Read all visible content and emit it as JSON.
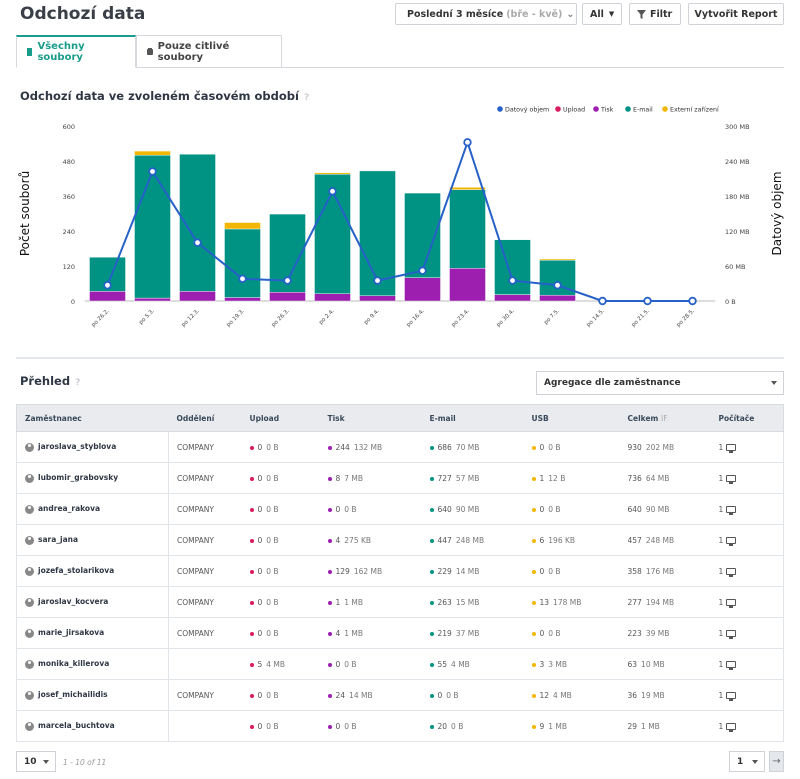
{
  "header": {
    "title": "Odchozí data",
    "period_label": "Poslední 3 měsíce",
    "period_range": "(bře - kvě)",
    "scope": "All",
    "filter_label": "Filtr",
    "report_label": "Vytvořit Report"
  },
  "tabs": [
    {
      "label": "Všechny soubory"
    },
    {
      "label": "Pouze citlivé soubory"
    }
  ],
  "chart_section": {
    "title": "Odchozí data ve zvoleném časovém období",
    "help": "?"
  },
  "chart_data": {
    "type": "bar",
    "ylabel": "Počet souborů",
    "y2label": "Datový objem",
    "ylim": [
      0,
      600
    ],
    "y2lim": [
      0,
      300
    ],
    "yticks": [
      "0",
      "120",
      "240",
      "360",
      "480",
      "600"
    ],
    "y2ticks": [
      "0 B",
      "60 MB",
      "120 MB",
      "180 MB",
      "240 MB",
      "300 MB"
    ],
    "categories": [
      "po 26.2.",
      "po 5.3.",
      "po 12.3.",
      "po 19.3.",
      "po 26.3.",
      "po 2.4.",
      "po 9.4.",
      "po 16.4.",
      "po 23.4.",
      "po 30.4.",
      "po 7.5.",
      "po 14.5.",
      "po 21.5.",
      "po 28.5."
    ],
    "series": [
      {
        "name": "Upload",
        "color": "#d81b60",
        "values": [
          0,
          0,
          0,
          0,
          0,
          0,
          0,
          0,
          0,
          0,
          0,
          0,
          0,
          0
        ]
      },
      {
        "name": "Tisk",
        "color": "#9c1fb0",
        "values": [
          33,
          10,
          33,
          12,
          30,
          25,
          18,
          80,
          112,
          22,
          20,
          0,
          0,
          0
        ]
      },
      {
        "name": "E-mail",
        "color": "#009384",
        "values": [
          117,
          490,
          470,
          235,
          268,
          410,
          428,
          290,
          270,
          188,
          120,
          0,
          0,
          0
        ]
      },
      {
        "name": "Externí zařízení",
        "color": "#f2b705",
        "values": [
          0,
          14,
          0,
          22,
          0,
          5,
          0,
          0,
          8,
          0,
          4,
          0,
          0,
          0
        ]
      },
      {
        "name": "Datový objem",
        "color": "#2561c8",
        "type": "line",
        "axis": "y2",
        "values": [
          27,
          222,
          100,
          38,
          35,
          188,
          35,
          52,
          272,
          35,
          27,
          0,
          0,
          0
        ]
      }
    ],
    "legend_position": "top-right"
  },
  "overview": {
    "title": "Přehled",
    "help": "?",
    "aggregation": "Agregace dle zaměstnance",
    "columns": [
      "Zaměstnanec",
      "Oddělení",
      "Upload",
      "Tisk",
      "E-mail",
      "USB",
      "Celkem",
      "Počítače"
    ],
    "celkem_suffix": "IF",
    "rows": [
      {
        "name": "jaroslava_styblova",
        "dept": "COMPANY",
        "up": "0",
        "up_s": "0 B",
        "tisk": "244",
        "tisk_s": "132 MB",
        "mail": "686",
        "mail_s": "70 MB",
        "usb": "0",
        "usb_s": "0 B",
        "tot": "930",
        "tot_s": "202 MB",
        "pc": "1"
      },
      {
        "name": "lubomir_grabovsky",
        "dept": "COMPANY",
        "up": "0",
        "up_s": "0 B",
        "tisk": "8",
        "tisk_s": "7 MB",
        "mail": "727",
        "mail_s": "57 MB",
        "usb": "1",
        "usb_s": "12 B",
        "tot": "736",
        "tot_s": "64 MB",
        "pc": "1"
      },
      {
        "name": "andrea_rakova",
        "dept": "COMPANY",
        "up": "0",
        "up_s": "0 B",
        "tisk": "0",
        "tisk_s": "0 B",
        "mail": "640",
        "mail_s": "90 MB",
        "usb": "0",
        "usb_s": "0 B",
        "tot": "640",
        "tot_s": "90 MB",
        "pc": "1"
      },
      {
        "name": "sara_jana",
        "dept": "COMPANY",
        "up": "0",
        "up_s": "0 B",
        "tisk": "4",
        "tisk_s": "275 KB",
        "mail": "447",
        "mail_s": "248 MB",
        "usb": "6",
        "usb_s": "196 KB",
        "tot": "457",
        "tot_s": "248 MB",
        "pc": "1"
      },
      {
        "name": "jozefa_stolarikova",
        "dept": "COMPANY",
        "up": "0",
        "up_s": "0 B",
        "tisk": "129",
        "tisk_s": "162 MB",
        "mail": "229",
        "mail_s": "14 MB",
        "usb": "0",
        "usb_s": "0 B",
        "tot": "358",
        "tot_s": "176 MB",
        "pc": "1"
      },
      {
        "name": "jaroslav_kocvera",
        "dept": "COMPANY",
        "up": "0",
        "up_s": "0 B",
        "tisk": "1",
        "tisk_s": "1 MB",
        "mail": "263",
        "mail_s": "15 MB",
        "usb": "13",
        "usb_s": "178 MB",
        "tot": "277",
        "tot_s": "194 MB",
        "pc": "1"
      },
      {
        "name": "marie_jirsakova",
        "dept": "COMPANY",
        "up": "0",
        "up_s": "0 B",
        "tisk": "4",
        "tisk_s": "1 MB",
        "mail": "219",
        "mail_s": "37 MB",
        "usb": "0",
        "usb_s": "0 B",
        "tot": "223",
        "tot_s": "39 MB",
        "pc": "1"
      },
      {
        "name": "monika_killerova",
        "dept": "",
        "up": "5",
        "up_s": "4 MB",
        "tisk": "0",
        "tisk_s": "0 B",
        "mail": "55",
        "mail_s": "4 MB",
        "usb": "3",
        "usb_s": "3 MB",
        "tot": "63",
        "tot_s": "10 MB",
        "pc": "1"
      },
      {
        "name": "josef_michailidis",
        "dept": "COMPANY",
        "up": "0",
        "up_s": "0 B",
        "tisk": "24",
        "tisk_s": "14 MB",
        "mail": "0",
        "mail_s": "0 B",
        "usb": "12",
        "usb_s": "4 MB",
        "tot": "36",
        "tot_s": "19 MB",
        "pc": "1"
      },
      {
        "name": "marcela_buchtova",
        "dept": "",
        "up": "0",
        "up_s": "0 B",
        "tisk": "0",
        "tisk_s": "0 B",
        "mail": "20",
        "mail_s": "0 B",
        "usb": "9",
        "usb_s": "1 MB",
        "tot": "29",
        "tot_s": "1 MB",
        "pc": "1"
      }
    ]
  },
  "pagination": {
    "page_size": "10",
    "range": "1 - 10 of 11",
    "page": "1",
    "next": "→"
  },
  "colors": {
    "accent": "#1a9c8c",
    "upload": "#d81b60",
    "tisk": "#9c1fb0",
    "email": "#009384",
    "usb": "#f2b705",
    "line": "#2561c8"
  }
}
